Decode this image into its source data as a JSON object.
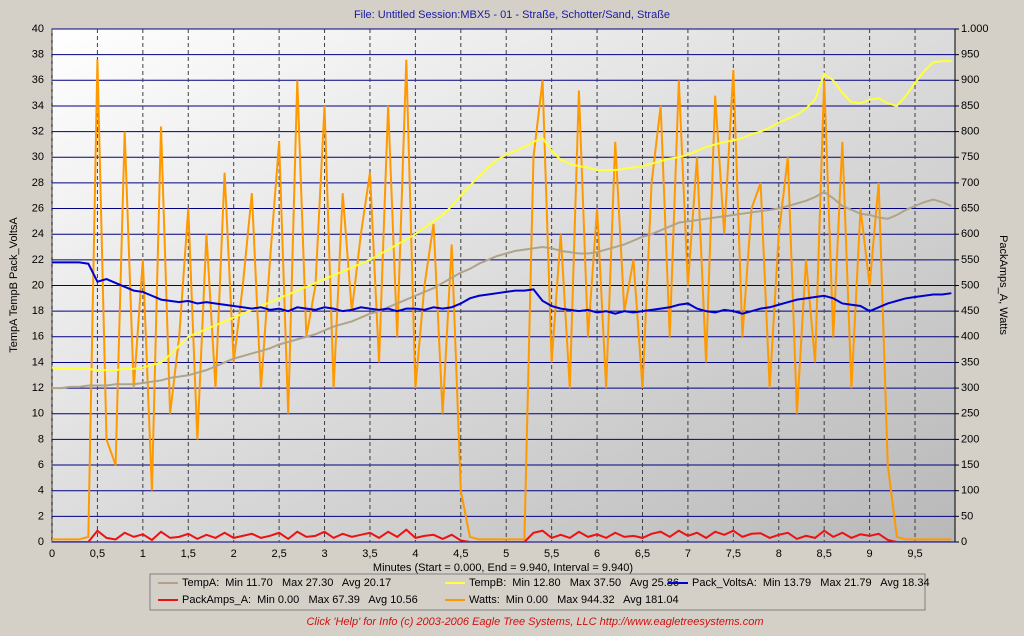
{
  "chart_data": {
    "type": "line",
    "title": "File: Untitled   Session:MBX5 - 01 - Straße, Schotter/Sand, Straße",
    "x_label": "Minutes (Start = 0.000, End = 9.940, Interval = 9.940)",
    "y_label": "TempA TempB Pack_VoltsA",
    "y2_label": "PackAmps_A, Watts",
    "footer": "Click 'Help' for Info  (c) 2003-2006 Eagle Tree Systems, LLC      http://www.eagletreesystems.com",
    "grid": true,
    "xlim": [
      0,
      9.94
    ],
    "xticks": [
      0,
      {
        "value": 0.5,
        "label": "0,5"
      },
      1,
      {
        "value": 1.5,
        "label": "1,5"
      },
      2,
      {
        "value": 2.5,
        "label": "2,5"
      },
      3,
      {
        "value": 3.5,
        "label": "3,5"
      },
      4,
      {
        "value": 4.5,
        "label": "4,5"
      },
      5,
      {
        "value": 5.5,
        "label": "5,5"
      },
      6,
      {
        "value": 6.5,
        "label": "6,5"
      },
      7,
      {
        "value": 7.5,
        "label": "7,5"
      },
      8,
      {
        "value": 8.5,
        "label": "8,5"
      },
      9,
      {
        "value": 9.5,
        "label": "9,5"
      }
    ],
    "ylim": [
      0,
      40
    ],
    "yticks": [
      0,
      2,
      4,
      6,
      8,
      10,
      12,
      14,
      16,
      18,
      20,
      22,
      24,
      26,
      28,
      30,
      32,
      34,
      36,
      38,
      40
    ],
    "y2lim": [
      0,
      1000
    ],
    "y2ticks": [
      0,
      50,
      100,
      150,
      200,
      250,
      300,
      350,
      400,
      450,
      500,
      550,
      600,
      650,
      700,
      750,
      800,
      850,
      900,
      950,
      {
        "value": 1000,
        "label": "1.000"
      }
    ],
    "x": [
      0,
      0.1,
      0.2,
      0.3,
      0.4,
      0.5,
      0.6,
      0.7,
      0.8,
      0.9,
      1,
      1.1,
      1.2,
      1.3,
      1.4,
      1.5,
      1.6,
      1.7,
      1.8,
      1.9,
      2,
      2.1,
      2.2,
      2.3,
      2.4,
      2.5,
      2.6,
      2.7,
      2.8,
      2.9,
      3,
      3.1,
      3.2,
      3.3,
      3.4,
      3.5,
      3.6,
      3.7,
      3.8,
      3.9,
      4,
      4.1,
      4.2,
      4.3,
      4.4,
      4.5,
      4.6,
      4.7,
      4.8,
      4.9,
      5,
      5.1,
      5.2,
      5.3,
      5.4,
      5.5,
      5.6,
      5.7,
      5.8,
      5.9,
      6,
      6.1,
      6.2,
      6.3,
      6.4,
      6.5,
      6.6,
      6.7,
      6.8,
      6.9,
      7,
      7.1,
      7.2,
      7.3,
      7.4,
      7.5,
      7.6,
      7.7,
      7.8,
      7.9,
      8,
      8.1,
      8.2,
      8.3,
      8.4,
      8.5,
      8.6,
      8.7,
      8.8,
      8.9,
      9,
      9.1,
      9.2,
      9.3,
      9.4,
      9.5,
      9.6,
      9.7,
      9.8,
      9.9
    ],
    "series": [
      {
        "name": "Watts:",
        "stats": "Min 0.00   Max 944.32   Avg 181.04",
        "color": "#ff9900",
        "axis": "y2",
        "values": [
          5,
          5,
          5,
          5,
          10,
          940,
          200,
          150,
          800,
          300,
          550,
          100,
          810,
          250,
          400,
          650,
          200,
          600,
          300,
          720,
          350,
          500,
          680,
          300,
          550,
          780,
          250,
          900,
          400,
          500,
          850,
          300,
          680,
          450,
          600,
          720,
          350,
          850,
          400,
          940,
          300,
          500,
          620,
          250,
          580,
          100,
          10,
          5,
          5,
          5,
          5,
          5,
          5,
          750,
          900,
          350,
          600,
          300,
          880,
          400,
          650,
          300,
          780,
          450,
          550,
          300,
          700,
          850,
          400,
          900,
          500,
          750,
          350,
          870,
          600,
          920,
          400,
          650,
          700,
          300,
          600,
          750,
          250,
          550,
          350,
          900,
          400,
          780,
          300,
          650,
          500,
          700,
          150,
          10,
          5,
          5,
          5,
          5,
          5,
          5
        ]
      },
      {
        "name": "PackAmps_A:",
        "stats": "Min 0.00   Max 67.39   Avg 10.56",
        "color": "#ee1111",
        "axis": "y2",
        "values": [
          0,
          0,
          0,
          0,
          0,
          22,
          8,
          5,
          18,
          10,
          15,
          4,
          20,
          8,
          10,
          16,
          6,
          14,
          8,
          18,
          8,
          12,
          16,
          8,
          12,
          18,
          6,
          20,
          10,
          12,
          20,
          8,
          16,
          10,
          14,
          18,
          8,
          20,
          10,
          24,
          8,
          12,
          14,
          6,
          14,
          3,
          0,
          0,
          0,
          0,
          0,
          0,
          0,
          18,
          22,
          8,
          14,
          8,
          20,
          10,
          15,
          8,
          18,
          10,
          12,
          8,
          16,
          20,
          10,
          22,
          12,
          18,
          8,
          20,
          14,
          22,
          10,
          16,
          17,
          8,
          14,
          18,
          6,
          12,
          8,
          22,
          10,
          18,
          8,
          15,
          12,
          16,
          4,
          0,
          0,
          0,
          0,
          0,
          0,
          0
        ]
      },
      {
        "name": "TempA:",
        "stats": "Min 11.70   Max 27.30   Avg 20.17",
        "color": "#b0a488",
        "values": [
          12,
          12,
          12.1,
          12.1,
          12.2,
          12.2,
          12.2,
          12.3,
          12.3,
          12.3,
          12.4,
          12.5,
          12.6,
          12.8,
          12.9,
          13,
          13.2,
          13.4,
          13.7,
          14,
          14.3,
          14.5,
          14.7,
          14.9,
          15.1,
          15.4,
          15.6,
          15.8,
          16,
          16.2,
          16.5,
          16.8,
          17,
          17.2,
          17.5,
          17.8,
          18,
          18.3,
          18.6,
          18.9,
          19.2,
          19.5,
          19.8,
          20.2,
          20.6,
          21,
          21.3,
          21.7,
          22,
          22.3,
          22.5,
          22.7,
          22.8,
          22.9,
          23,
          22.9,
          22.7,
          22.6,
          22.5,
          22.5,
          22.6,
          22.8,
          23,
          23.2,
          23.5,
          23.8,
          24,
          24.3,
          24.6,
          24.9,
          25,
          25.1,
          25.2,
          25.3,
          25.4,
          25.5,
          25.6,
          25.7,
          25.8,
          25.9,
          26,
          26.2,
          26.4,
          26.6,
          26.9,
          27.3,
          26.8,
          26.2,
          25.9,
          25.6,
          25.5,
          25.3,
          25.2,
          25.5,
          25.9,
          26.2,
          26.5,
          26.7,
          26.5,
          26.2
        ]
      },
      {
        "name": "TempB:",
        "stats": "Min 12.80   Max 37.50   Avg 25.86",
        "color": "#ffff40",
        "values": [
          13.6,
          13.5,
          13.5,
          13.5,
          13.5,
          13.4,
          13.4,
          13.4,
          13.5,
          13.5,
          13.6,
          13.8,
          14,
          14.6,
          15.3,
          16,
          16.3,
          16.6,
          16.9,
          17.2,
          17.5,
          17.8,
          18.1,
          18.4,
          18.7,
          19,
          19.3,
          19.6,
          19.9,
          20.2,
          20.5,
          20.8,
          21.1,
          21.4,
          21.7,
          22,
          22.4,
          22.8,
          23.2,
          23.6,
          24,
          24.5,
          25,
          25.5,
          26.2,
          27,
          27.8,
          28.5,
          29.2,
          29.8,
          30.2,
          30.5,
          30.8,
          31.2,
          31.5,
          30.5,
          29.8,
          29.5,
          29.3,
          29.2,
          29,
          29,
          29,
          29.1,
          29.2,
          29.3,
          29.5,
          29.7,
          29.9,
          30,
          30.2,
          30.5,
          30.8,
          31,
          31.2,
          31.3,
          31.5,
          31.8,
          32,
          32.3,
          32.7,
          33,
          33.3,
          33.8,
          34.5,
          36.5,
          36,
          35,
          34.3,
          34.2,
          34.5,
          34.6,
          34.2,
          34,
          34.8,
          35.8,
          36.7,
          37.4,
          37.5,
          37.5
        ]
      },
      {
        "name": "Pack_VoltsA:",
        "stats": "Min 13.79   Max 21.79   Avg 18.34",
        "color": "#0000cc",
        "values": [
          21.8,
          21.8,
          21.8,
          21.8,
          21.7,
          20.3,
          20.5,
          20.2,
          19.9,
          19.6,
          19.5,
          19.2,
          18.9,
          18.8,
          18.7,
          18.8,
          18.6,
          18.7,
          18.6,
          18.5,
          18.4,
          18.3,
          18.2,
          18.3,
          18.1,
          18.2,
          18,
          18.3,
          18.2,
          18.1,
          18.3,
          18.2,
          18,
          18.1,
          18.3,
          18.2,
          18.1,
          18.2,
          18,
          18.2,
          18.2,
          18.1,
          18.3,
          18.2,
          18.3,
          18.6,
          19,
          19.2,
          19.3,
          19.4,
          19.5,
          19.6,
          19.6,
          19.7,
          18.8,
          18.4,
          18.2,
          18.1,
          18,
          18.1,
          17.9,
          18,
          17.8,
          18,
          17.9,
          18,
          18.1,
          18.2,
          18.3,
          18.5,
          18.6,
          18.2,
          18,
          17.9,
          18.1,
          18,
          17.8,
          18,
          18.2,
          18.3,
          18.5,
          18.7,
          18.9,
          19,
          19.1,
          19.2,
          19,
          18.6,
          18.5,
          18.4,
          18,
          18.3,
          18.6,
          18.8,
          19,
          19.1,
          19.2,
          19.3,
          19.3,
          19.4
        ]
      }
    ]
  }
}
